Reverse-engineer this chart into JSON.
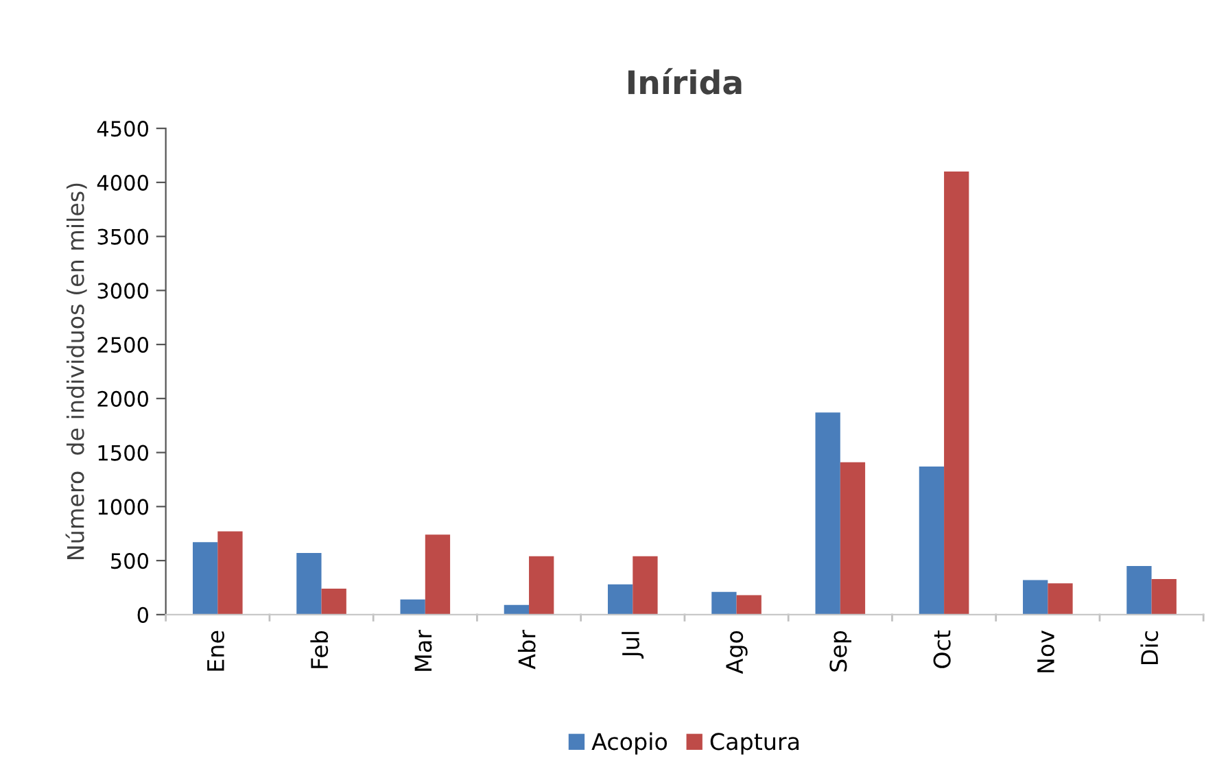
{
  "chart_data": {
    "type": "bar",
    "title": "Inírida",
    "ylabel": "Número  de individuos (en miles)",
    "categories": [
      "Ene",
      "Feb",
      "Mar",
      "Abr",
      "Jul",
      "Ago",
      "Sep",
      "Oct",
      "Nov",
      "Dic"
    ],
    "series": [
      {
        "name": "Acopio",
        "color": "#4a7ebb",
        "values": [
          670,
          570,
          140,
          90,
          280,
          210,
          1870,
          1370,
          320,
          450
        ]
      },
      {
        "name": "Captura",
        "color": "#be4b48",
        "values": [
          770,
          240,
          740,
          540,
          540,
          180,
          1410,
          4100,
          290,
          330
        ]
      }
    ],
    "ylim": [
      0,
      4500
    ],
    "yticks": [
      0,
      500,
      1000,
      1500,
      2000,
      2500,
      3000,
      3500,
      4000,
      4500
    ],
    "grid": false,
    "legend": "bottom"
  }
}
